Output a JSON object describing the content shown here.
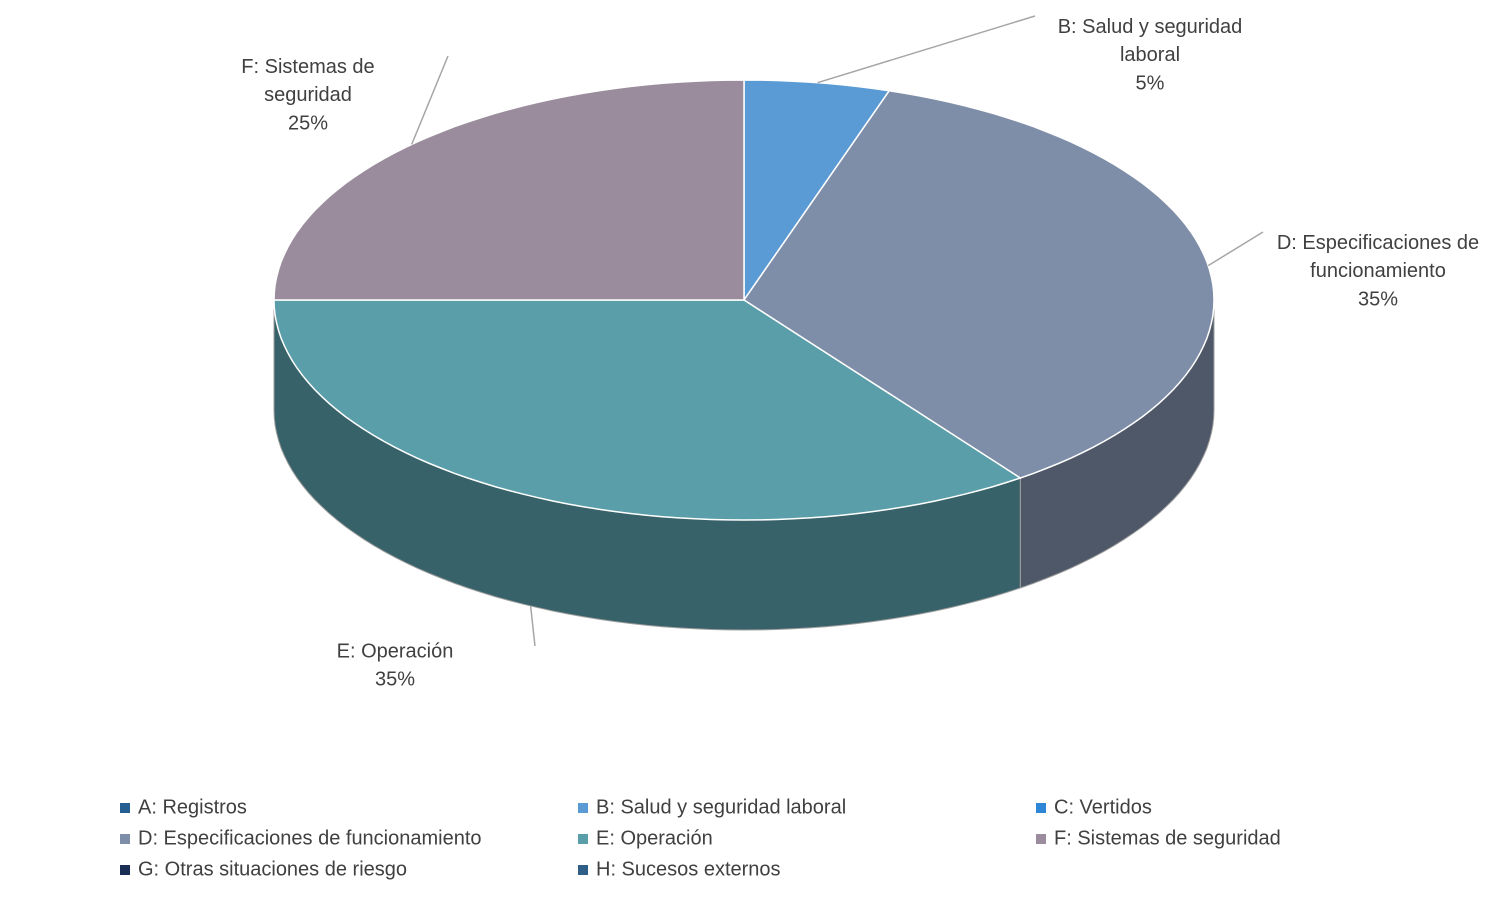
{
  "chart_data": {
    "type": "pie3d",
    "categories": [
      "A: Registros",
      "B: Salud y seguridad laboral",
      "C: Vertidos",
      "D: Especificaciones de funcionamiento",
      "E: Operación",
      "F: Sistemas de seguridad",
      "G: Otras situaciones de riesgo",
      "H: Sucesos externos"
    ],
    "values": [
      0,
      5,
      0,
      35,
      35,
      25,
      0,
      0
    ],
    "value_labels": [
      null,
      "5%",
      null,
      "35%",
      "35%",
      "25%",
      null,
      null
    ],
    "colors": [
      "#255e91",
      "#5b9bd5",
      "#2e86d6",
      "#7f8ea8",
      "#5a9eaa",
      "#9a8c9c",
      "#1b2f54",
      "#2f5f87"
    ],
    "legend": "bottom"
  }
}
